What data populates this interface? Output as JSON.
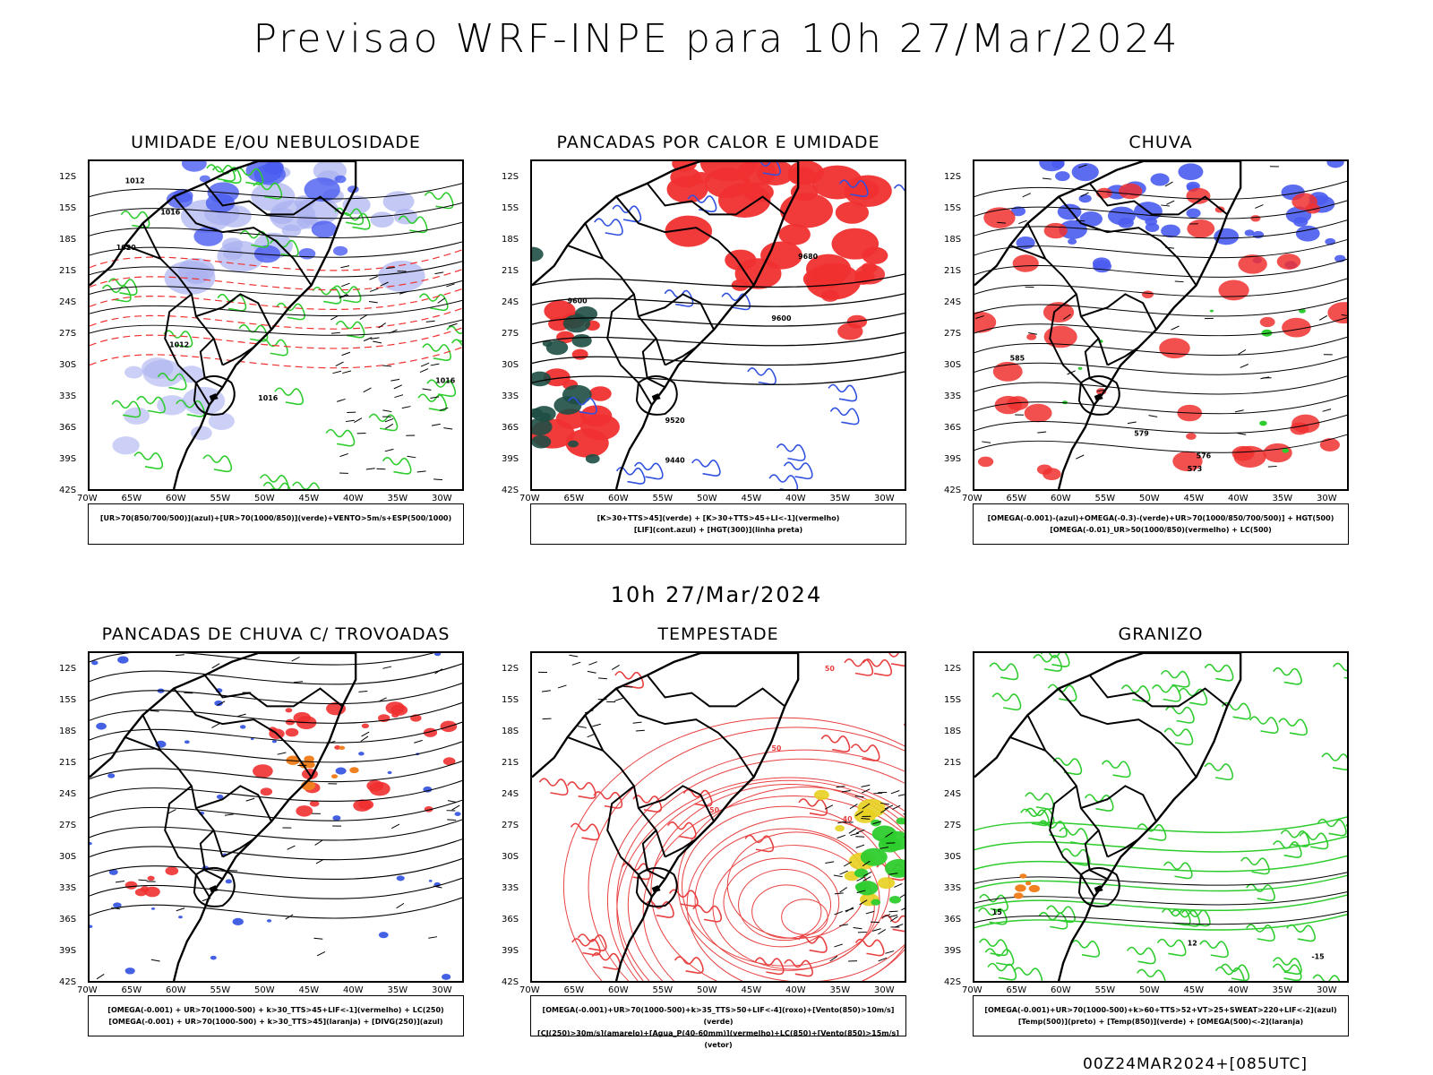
{
  "title": "Previsao WRF-INPE  para 10h 27/Mar/2024",
  "subtitle": "10h 27/Mar/2024",
  "footer": "00Z24MAR2024+[085UTC]",
  "lat_labels": [
    "12S",
    "15S",
    "18S",
    "21S",
    "24S",
    "27S",
    "30S",
    "33S",
    "36S",
    "39S",
    "42S"
  ],
  "lon_labels": [
    "70W",
    "65W",
    "60W",
    "55W",
    "50W",
    "45W",
    "40W",
    "35W",
    "30W"
  ],
  "colors": {
    "blue": "#4a5cf0",
    "lightblue": "#aab0f0",
    "green": "#2ecc2e",
    "red": "#f03030",
    "darkteal": "#1e4e44",
    "orange": "#f08020",
    "yellow": "#e8d020",
    "contour": "#000000"
  },
  "panels": [
    {
      "title": "UMIDADE E/OU NEBULOSIDADE",
      "legend": [
        "[UR>70(850/700/500)](azul)+[UR>70(1000/850)](verde)+VENTO>5m/s+ESP(500/1000)"
      ],
      "contour_labels": [
        "1012",
        "1016",
        "1020",
        "1016",
        "1012",
        "1016"
      ]
    },
    {
      "title": "PANCADAS POR CALOR E UMIDADE",
      "legend": [
        "[K>30+TTS>45](verde) + [K>30+TTS>45+LI<-1](vermelho)",
        "[LIF](cont.azul) + [HGT(300)](linha preta)"
      ],
      "contour_labels": [
        "9600",
        "9600",
        "9520",
        "9440",
        "9680"
      ]
    },
    {
      "title": "CHUVA",
      "legend": [
        "[OMEGA(-0.001)-(azul)+OMEGA(-0.3)-(verde)+UR>70(1000/850/700/500)] + HGT(500)",
        "[OMEGA(-0.01)_UR>50(1000/850)(vermelho) + LC(500)"
      ],
      "contour_labels": [
        "585",
        "579",
        "573",
        "576"
      ]
    },
    {
      "title": "PANCADAS DE CHUVA C/ TROVOADAS",
      "legend": [
        "[OMEGA(-0.001) + UR>70(1000-500) + k>30_TTS>45+LIF<-1](vermelho) + LC(250)",
        "[OMEGA(-0.001) + UR>70(1000-500) + k>30_TTS>45](laranja) + [DIVG(250)](azul)"
      ],
      "contour_labels": []
    },
    {
      "title": "TEMPESTADE",
      "legend": [
        "[OMEGA(-0.001)+UR>70(1000-500)+k>35_TTS>50+LIF<-4](roxo)+[Vento(850)>10m/s](verde)",
        "[CJ(250)>30m/s](amarelo)+[Agua_P(40-60mm)](vermelho)+LC(850)+[Vento(850)>15m/s](vetor)"
      ],
      "contour_labels": [
        "50",
        "50",
        "50",
        "40"
      ]
    },
    {
      "title": "GRANIZO",
      "legend": [
        "[OMEGA(-0.001)+UR>70(1000-500)+k>60+TTS>52+VT>25+SWEAT>220+LIF<-2](azul)",
        "[Temp(500)](preto) + [Temp(850)](verde) + [OMEGA(500)<-2](laranja)"
      ],
      "contour_labels": [
        "12",
        "-15",
        "15"
      ]
    }
  ]
}
